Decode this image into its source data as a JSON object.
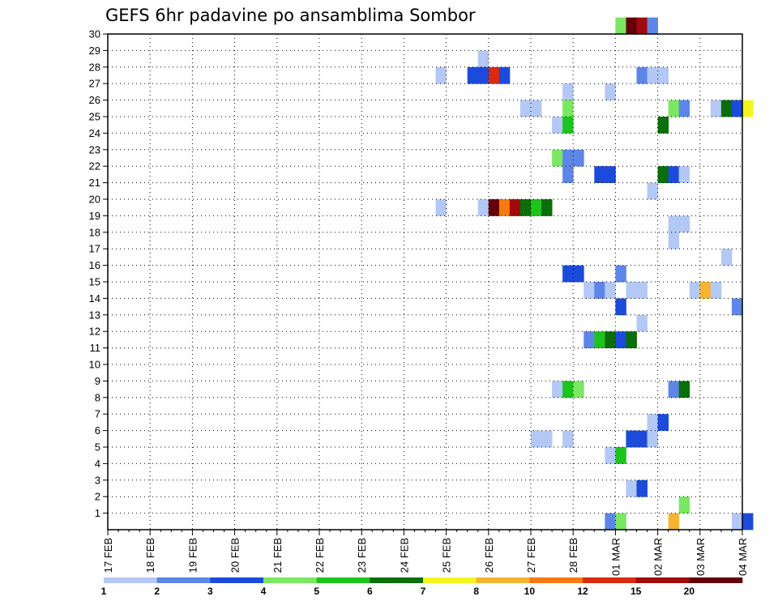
{
  "chart_data": {
    "type": "heatmap",
    "title": "GEFS 6hr padavine po ansamblima Sombor",
    "xlabel": "",
    "ylabel": "",
    "x_start_date": "17 FEB",
    "x_tick_labels": [
      "17 FEB",
      "18 FEB",
      "19 FEB",
      "20 FEB",
      "21 FEB",
      "22 FEB",
      "23 FEB",
      "24 FEB",
      "25 FEB",
      "26 FEB",
      "27 FEB",
      "28 FEB",
      "01 MAR",
      "02 MAR",
      "03 MAR",
      "04 MAR"
    ],
    "y_tick_labels": [
      "1",
      "2",
      "3",
      "4",
      "5",
      "6",
      "7",
      "8",
      "9",
      "10",
      "11",
      "12",
      "13",
      "14",
      "15",
      "16",
      "17",
      "18",
      "19",
      "20",
      "21",
      "22",
      "23",
      "24",
      "25",
      "26",
      "27",
      "28",
      "29",
      "30"
    ],
    "ylim": [
      0,
      30
    ],
    "grid": true,
    "legend": {
      "placement": "bottom",
      "labels": [
        "1",
        "2",
        "3",
        "4",
        "5",
        "6",
        "7",
        "8",
        "10",
        "12",
        "15",
        "20"
      ],
      "colors": [
        "#b4c8f5",
        "#5e86e8",
        "#1c4bdc",
        "#7ae862",
        "#1cc41c",
        "#0a6e0a",
        "#f5f51e",
        "#f5b432",
        "#f57a10",
        "#dc2a10",
        "#a00a0a",
        "#64000a"
      ]
    },
    "cells": [
      {
        "member": 30,
        "t": "01 MAR 00Z",
        "c": 3
      },
      {
        "member": 30,
        "t": "01 MAR 06Z",
        "c": 11
      },
      {
        "member": 30,
        "t": "01 MAR 12Z",
        "c": 10
      },
      {
        "member": 30,
        "t": "01 MAR 18Z",
        "c": 1
      },
      {
        "member": 28,
        "t": "25 FEB 18Z",
        "c": 0
      },
      {
        "member": 27,
        "t": "24 FEB 18Z",
        "c": 0
      },
      {
        "member": 27,
        "t": "25 FEB 12Z",
        "c": 2
      },
      {
        "member": 27,
        "t": "25 FEB 18Z",
        "c": 2
      },
      {
        "member": 27,
        "t": "26 FEB 00Z",
        "c": 9
      },
      {
        "member": 27,
        "t": "26 FEB 06Z",
        "c": 2
      },
      {
        "member": 27,
        "t": "01 MAR 12Z",
        "c": 1
      },
      {
        "member": 27,
        "t": "01 MAR 18Z",
        "c": 0
      },
      {
        "member": 27,
        "t": "02 MAR 00Z",
        "c": 0
      },
      {
        "member": 26,
        "t": "27 FEB 18Z",
        "c": 0
      },
      {
        "member": 26,
        "t": "28 FEB 18Z",
        "c": 0
      },
      {
        "member": 25,
        "t": "26 FEB 18Z",
        "c": 0
      },
      {
        "member": 25,
        "t": "27 FEB 00Z",
        "c": 0
      },
      {
        "member": 25,
        "t": "27 FEB 18Z",
        "c": 3
      },
      {
        "member": 25,
        "t": "02 MAR 06Z",
        "c": 3
      },
      {
        "member": 25,
        "t": "02 MAR 12Z",
        "c": 1
      },
      {
        "member": 25,
        "t": "03 MAR 06Z",
        "c": 0
      },
      {
        "member": 25,
        "t": "03 MAR 12Z",
        "c": 5
      },
      {
        "member": 25,
        "t": "03 MAR 18Z",
        "c": 2
      },
      {
        "member": 25,
        "t": "04 MAR 00Z",
        "c": 6
      },
      {
        "member": 24,
        "t": "27 FEB 12Z",
        "c": 0
      },
      {
        "member": 24,
        "t": "27 FEB 18Z",
        "c": 4
      },
      {
        "member": 24,
        "t": "02 MAR 00Z",
        "c": 5
      },
      {
        "member": 22,
        "t": "27 FEB 12Z",
        "c": 3
      },
      {
        "member": 22,
        "t": "27 FEB 18Z",
        "c": 1
      },
      {
        "member": 22,
        "t": "28 FEB 00Z",
        "c": 1
      },
      {
        "member": 21,
        "t": "27 FEB 18Z",
        "c": 1
      },
      {
        "member": 21,
        "t": "28 FEB 12Z",
        "c": 2
      },
      {
        "member": 21,
        "t": "28 FEB 18Z",
        "c": 2
      },
      {
        "member": 21,
        "t": "02 MAR 00Z",
        "c": 5
      },
      {
        "member": 21,
        "t": "02 MAR 06Z",
        "c": 2
      },
      {
        "member": 21,
        "t": "02 MAR 12Z",
        "c": 0
      },
      {
        "member": 20,
        "t": "01 MAR 18Z",
        "c": 0
      },
      {
        "member": 19,
        "t": "24 FEB 18Z",
        "c": 0
      },
      {
        "member": 19,
        "t": "25 FEB 18Z",
        "c": 0
      },
      {
        "member": 19,
        "t": "26 FEB 00Z",
        "c": 11
      },
      {
        "member": 19,
        "t": "26 FEB 06Z",
        "c": 8
      },
      {
        "member": 19,
        "t": "26 FEB 12Z",
        "c": 10
      },
      {
        "member": 19,
        "t": "26 FEB 18Z",
        "c": 5
      },
      {
        "member": 19,
        "t": "27 FEB 00Z",
        "c": 4
      },
      {
        "member": 19,
        "t": "27 FEB 06Z",
        "c": 5
      },
      {
        "member": 18,
        "t": "02 MAR 06Z",
        "c": 0
      },
      {
        "member": 18,
        "t": "02 MAR 12Z",
        "c": 0
      },
      {
        "member": 17,
        "t": "02 MAR 06Z",
        "c": 0
      },
      {
        "member": 16,
        "t": "03 MAR 12Z",
        "c": 0
      },
      {
        "member": 15,
        "t": "27 FEB 18Z",
        "c": 2
      },
      {
        "member": 15,
        "t": "28 FEB 00Z",
        "c": 2
      },
      {
        "member": 15,
        "t": "01 MAR 00Z",
        "c": 1
      },
      {
        "member": 14,
        "t": "28 FEB 06Z",
        "c": 0
      },
      {
        "member": 14,
        "t": "28 FEB 12Z",
        "c": 1
      },
      {
        "member": 14,
        "t": "28 FEB 18Z",
        "c": 0
      },
      {
        "member": 14,
        "t": "01 MAR 06Z",
        "c": 0
      },
      {
        "member": 14,
        "t": "01 MAR 12Z",
        "c": 0
      },
      {
        "member": 14,
        "t": "02 MAR 18Z",
        "c": 0
      },
      {
        "member": 14,
        "t": "03 MAR 00Z",
        "c": 7
      },
      {
        "member": 14,
        "t": "03 MAR 06Z",
        "c": 0
      },
      {
        "member": 13,
        "t": "01 MAR 00Z",
        "c": 2
      },
      {
        "member": 13,
        "t": "03 MAR 18Z",
        "c": 1
      },
      {
        "member": 12,
        "t": "01 MAR 12Z",
        "c": 0
      },
      {
        "member": 11,
        "t": "28 FEB 06Z",
        "c": 1
      },
      {
        "member": 11,
        "t": "28 FEB 12Z",
        "c": 4
      },
      {
        "member": 11,
        "t": "28 FEB 18Z",
        "c": 5
      },
      {
        "member": 11,
        "t": "01 MAR 00Z",
        "c": 2
      },
      {
        "member": 11,
        "t": "01 MAR 06Z",
        "c": 5
      },
      {
        "member": 8,
        "t": "27 FEB 12Z",
        "c": 0
      },
      {
        "member": 8,
        "t": "27 FEB 18Z",
        "c": 4
      },
      {
        "member": 8,
        "t": "28 FEB 00Z",
        "c": 3
      },
      {
        "member": 8,
        "t": "02 MAR 06Z",
        "c": 1
      },
      {
        "member": 8,
        "t": "02 MAR 12Z",
        "c": 5
      },
      {
        "member": 6,
        "t": "01 MAR 18Z",
        "c": 0
      },
      {
        "member": 6,
        "t": "02 MAR 00Z",
        "c": 2
      },
      {
        "member": 5,
        "t": "27 FEB 00Z",
        "c": 0
      },
      {
        "member": 5,
        "t": "27 FEB 06Z",
        "c": 0
      },
      {
        "member": 5,
        "t": "27 FEB 18Z",
        "c": 0
      },
      {
        "member": 5,
        "t": "01 MAR 06Z",
        "c": 2
      },
      {
        "member": 5,
        "t": "01 MAR 12Z",
        "c": 2
      },
      {
        "member": 5,
        "t": "01 MAR 18Z",
        "c": 0
      },
      {
        "member": 4,
        "t": "28 FEB 18Z",
        "c": 0
      },
      {
        "member": 4,
        "t": "01 MAR 00Z",
        "c": 4
      },
      {
        "member": 2,
        "t": "01 MAR 06Z",
        "c": 0
      },
      {
        "member": 2,
        "t": "01 MAR 12Z",
        "c": 2
      },
      {
        "member": 1,
        "t": "02 MAR 12Z",
        "c": 3
      },
      {
        "member": 0,
        "t": "28 FEB 18Z",
        "c": 1
      },
      {
        "member": 0,
        "t": "01 MAR 00Z",
        "c": 3
      },
      {
        "member": 0,
        "t": "02 MAR 06Z",
        "c": 7
      },
      {
        "member": 0,
        "t": "03 MAR 18Z",
        "c": 0
      },
      {
        "member": 0,
        "t": "04 MAR 00Z",
        "c": 2
      }
    ]
  }
}
